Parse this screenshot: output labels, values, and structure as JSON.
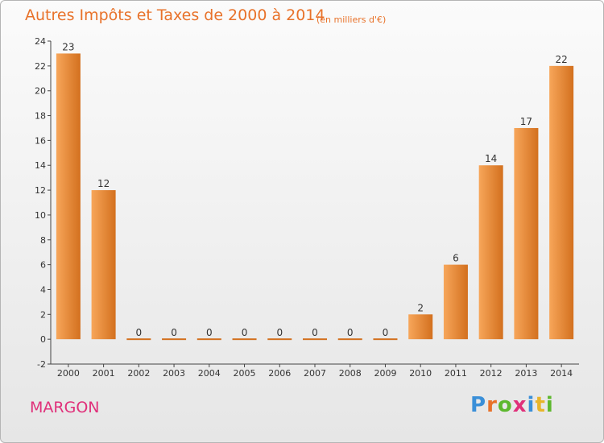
{
  "header": {
    "title": "Autres Impôts et Taxes de 2000 à 2014",
    "subtitle": "(en milliers d'€)"
  },
  "footer": {
    "commune": "MARGON",
    "logo_text": "Proxiti"
  },
  "colors": {
    "bar_light": "#F7A65A",
    "bar_dark": "#D3701E",
    "title": "#E8722A",
    "commune": "#E0307A"
  },
  "chart_data": {
    "type": "bar",
    "categories": [
      "2000",
      "2001",
      "2002",
      "2003",
      "2004",
      "2005",
      "2006",
      "2007",
      "2008",
      "2009",
      "2010",
      "2011",
      "2012",
      "2013",
      "2014"
    ],
    "values": [
      23,
      12,
      0,
      0,
      0,
      0,
      0,
      0,
      0,
      0,
      2,
      6,
      14,
      17,
      22
    ],
    "data_labels": [
      "23",
      "12",
      "0",
      "0",
      "0",
      "0",
      "0",
      "0",
      "0",
      "0",
      "2",
      "6",
      "14",
      "17",
      "22"
    ],
    "ylim": [
      -2,
      24
    ],
    "yticks": [
      -2,
      0,
      2,
      4,
      6,
      8,
      10,
      12,
      14,
      16,
      18,
      20,
      22,
      24
    ],
    "grid": false
  }
}
